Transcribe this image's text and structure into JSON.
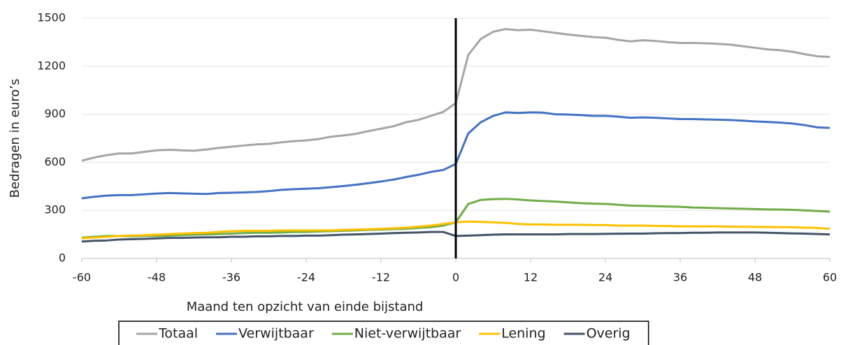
{
  "chart_data": {
    "type": "line",
    "xlabel": "Maand ten opzicht van einde bijstand",
    "ylabel": "Bedragen in euro’s",
    "x": [
      -60,
      -58,
      -56,
      -54,
      -52,
      -50,
      -48,
      -46,
      -44,
      -42,
      -40,
      -38,
      -36,
      -34,
      -32,
      -30,
      -28,
      -26,
      -24,
      -22,
      -20,
      -18,
      -16,
      -14,
      -12,
      -10,
      -8,
      -6,
      -4,
      -2,
      0,
      2,
      4,
      6,
      8,
      10,
      12,
      14,
      16,
      18,
      20,
      22,
      24,
      26,
      28,
      30,
      32,
      34,
      36,
      38,
      40,
      42,
      44,
      46,
      48,
      50,
      52,
      54,
      56,
      58,
      60
    ],
    "series": [
      {
        "name": "Totaal",
        "color": "#a5a5a5",
        "values": [
          610,
          630,
          645,
          655,
          655,
          665,
          675,
          678,
          675,
          672,
          680,
          690,
          697,
          705,
          712,
          715,
          725,
          732,
          737,
          745,
          760,
          768,
          778,
          795,
          810,
          825,
          850,
          865,
          890,
          915,
          970,
          1270,
          1370,
          1415,
          1432,
          1425,
          1428,
          1418,
          1408,
          1398,
          1390,
          1382,
          1378,
          1365,
          1355,
          1362,
          1358,
          1350,
          1345,
          1345,
          1343,
          1340,
          1335,
          1325,
          1315,
          1305,
          1300,
          1290,
          1275,
          1262,
          1258
        ]
      },
      {
        "name": "Verwijtbaar",
        "color": "#4472c4",
        "values": [
          375,
          385,
          392,
          395,
          395,
          400,
          405,
          408,
          406,
          404,
          402,
          408,
          410,
          412,
          415,
          420,
          428,
          432,
          435,
          438,
          445,
          452,
          460,
          470,
          480,
          492,
          508,
          522,
          540,
          552,
          590,
          780,
          850,
          890,
          912,
          908,
          912,
          910,
          900,
          898,
          895,
          890,
          890,
          885,
          878,
          880,
          878,
          874,
          870,
          870,
          868,
          866,
          864,
          860,
          855,
          852,
          848,
          842,
          832,
          818,
          815
        ]
      },
      {
        "name": "Niet-verwijtbaar",
        "color": "#70ad47",
        "values": [
          130,
          135,
          140,
          140,
          138,
          140,
          140,
          142,
          145,
          148,
          150,
          152,
          155,
          158,
          160,
          160,
          162,
          165,
          165,
          168,
          170,
          172,
          175,
          178,
          180,
          183,
          185,
          190,
          195,
          205,
          225,
          340,
          365,
          370,
          372,
          368,
          362,
          358,
          355,
          350,
          345,
          342,
          340,
          335,
          330,
          328,
          326,
          324,
          322,
          318,
          316,
          314,
          312,
          310,
          308,
          306,
          305,
          303,
          300,
          296,
          292
        ]
      },
      {
        "name": "Lening",
        "color": "#ffc000",
        "values": [
          125,
          130,
          135,
          140,
          142,
          145,
          148,
          152,
          155,
          158,
          160,
          165,
          170,
          172,
          172,
          172,
          175,
          175,
          175,
          175,
          175,
          178,
          180,
          182,
          185,
          188,
          192,
          198,
          205,
          215,
          225,
          230,
          228,
          225,
          222,
          215,
          212,
          212,
          210,
          210,
          210,
          208,
          208,
          205,
          205,
          205,
          203,
          202,
          200,
          200,
          200,
          200,
          198,
          198,
          197,
          196,
          195,
          194,
          192,
          190,
          185
        ]
      },
      {
        "name": "Overig",
        "color": "#44546a",
        "values": [
          105,
          110,
          112,
          118,
          120,
          122,
          125,
          128,
          128,
          130,
          132,
          132,
          135,
          135,
          138,
          138,
          140,
          140,
          142,
          142,
          145,
          148,
          150,
          152,
          155,
          158,
          160,
          162,
          165,
          165,
          140,
          142,
          145,
          148,
          150,
          150,
          150,
          150,
          150,
          152,
          152,
          152,
          153,
          154,
          155,
          155,
          157,
          158,
          158,
          160,
          160,
          162,
          162,
          162,
          162,
          160,
          158,
          156,
          155,
          152,
          150
        ]
      }
    ],
    "xlim": [
      -60,
      60
    ],
    "xticks": [
      -60,
      -48,
      -36,
      -24,
      -12,
      0,
      12,
      24,
      36,
      48,
      60
    ],
    "ylim": [
      0,
      1500
    ],
    "yticks": [
      0,
      300,
      600,
      900,
      1200,
      1500
    ],
    "grid": true,
    "vline": 0,
    "legend": "bottom"
  }
}
